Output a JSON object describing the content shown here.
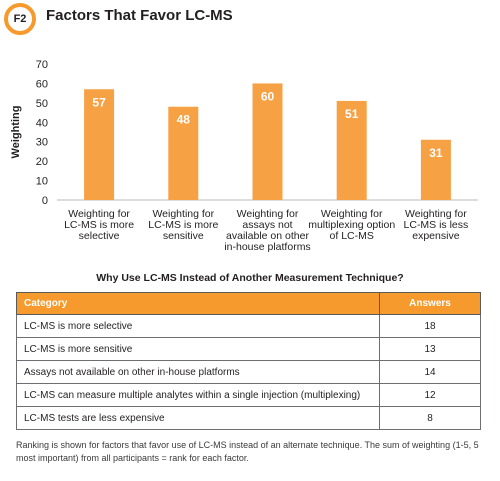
{
  "figure": {
    "badge": "F2",
    "title": "Factors That Favor LC-MS"
  },
  "chart_data": {
    "type": "bar",
    "categories": [
      [
        "Weighting for",
        "LC-MS is more",
        "selective"
      ],
      [
        "Weighting for",
        "LC-MS is more",
        "sensitive"
      ],
      [
        "Weighting for",
        "assays not",
        "available on other",
        "in-house platforms"
      ],
      [
        "Weighting for",
        "multiplexing option",
        "of LC-MS"
      ],
      [
        "Weighting for",
        "LC-MS is less",
        "expensive"
      ]
    ],
    "values": [
      57,
      48,
      60,
      51,
      31
    ],
    "ylabel": "Weighting",
    "ylim": [
      0,
      70
    ],
    "yticks": [
      0,
      10,
      20,
      30,
      40,
      50,
      60,
      70
    ],
    "bar_color": "#f7a145",
    "data_labels": true,
    "grid": false
  },
  "table": {
    "heading": "Why Use LC-MS Instead of Another Measurement Technique?",
    "header_color": "#f79a2e",
    "columns": [
      "Category",
      "Answers"
    ],
    "rows": [
      [
        "LC-MS is more selective",
        "18"
      ],
      [
        "LC-MS is more sensitive",
        "13"
      ],
      [
        "Assays not available on other in-house platforms",
        "14"
      ],
      [
        "LC-MS can measure multiple analytes within a single injection (multiplexing)",
        "12"
      ],
      [
        "LC-MS tests are less expensive",
        "8"
      ]
    ]
  },
  "footnote": "Ranking is shown for factors that favor use of LC-MS instead of an alternate technique. The sum of weighting (1-5, 5 most important) from all participants = rank for each factor."
}
